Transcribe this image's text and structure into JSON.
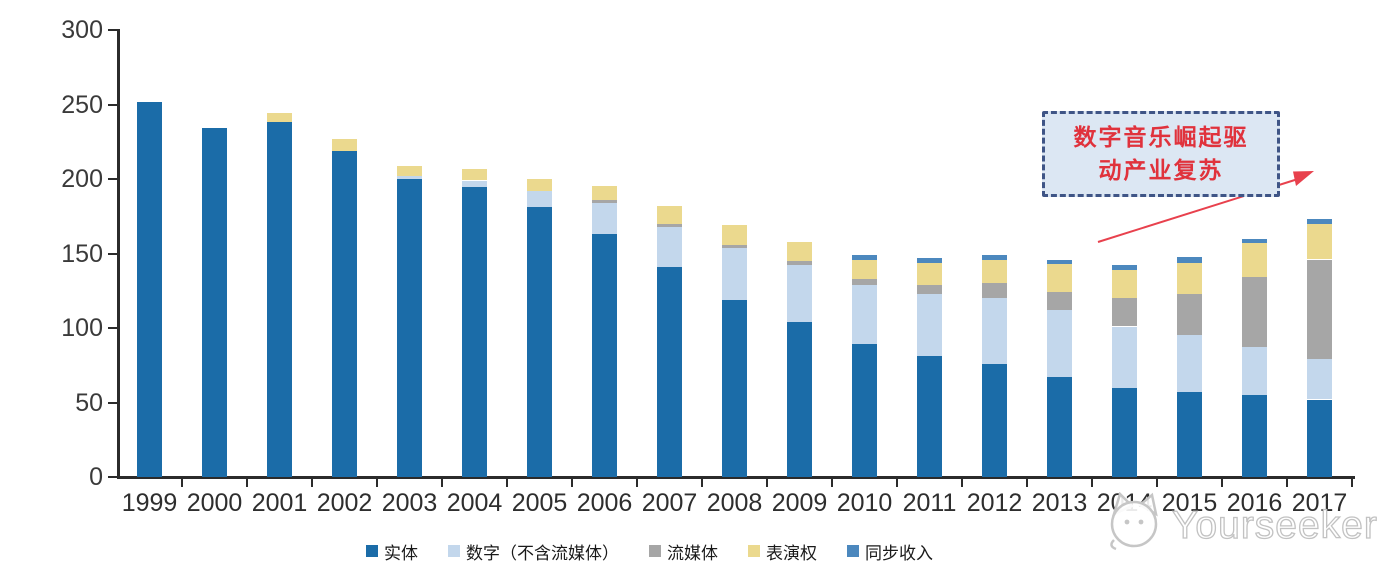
{
  "chart_data": {
    "type": "bar",
    "stacked": true,
    "categories": [
      "1999",
      "2000",
      "2001",
      "2002",
      "2003",
      "2004",
      "2005",
      "2006",
      "2007",
      "2008",
      "2009",
      "2010",
      "2011",
      "2012",
      "2013",
      "2014",
      "2015",
      "2016",
      "2017"
    ],
    "series": [
      {
        "name": "实体",
        "color": "#1B6CA8",
        "values": [
          252,
          234,
          238,
          219,
          200,
          195,
          181,
          163,
          141,
          119,
          104,
          89,
          81,
          76,
          67,
          60,
          57,
          55,
          52
        ]
      },
      {
        "name": "数字（不含流媒体）",
        "color": "#C3D7EC",
        "values": [
          0,
          0,
          0,
          0,
          2,
          4,
          11,
          21,
          27,
          35,
          38,
          40,
          42,
          44,
          45,
          41,
          38,
          32,
          27
        ]
      },
      {
        "name": "流媒体",
        "color": "#A6A6A6",
        "values": [
          0,
          0,
          0,
          0,
          0,
          0,
          0,
          2,
          2,
          2,
          3,
          4,
          6,
          10,
          12,
          19,
          28,
          47,
          67
        ]
      },
      {
        "name": "表演权",
        "color": "#EBD98E",
        "values": [
          0,
          0,
          6,
          8,
          7,
          8,
          8,
          9,
          12,
          13,
          13,
          13,
          15,
          16,
          19,
          19,
          21,
          23,
          24
        ]
      },
      {
        "name": "同步收入",
        "color": "#4C88BE",
        "values": [
          0,
          0,
          0,
          0,
          0,
          0,
          0,
          0,
          0,
          0,
          0,
          3,
          3,
          3,
          3,
          3,
          4,
          3,
          3
        ]
      }
    ],
    "title": "",
    "xlabel": "",
    "ylabel": "",
    "ylim": [
      0,
      300
    ],
    "yticks": [
      0,
      50,
      100,
      150,
      200,
      250,
      300
    ],
    "grid": false,
    "legend_position": "bottom"
  },
  "annotation": {
    "line1": "数字音乐崛起驱",
    "line2": "动产业复苏",
    "box_fill": "#DCE7F3",
    "border_color": "#3F5586",
    "text_color": "#E0323C",
    "arrow_color": "#E8414D"
  },
  "watermark": {
    "text": "Yourseeker",
    "logo": "cat-face-icon"
  }
}
